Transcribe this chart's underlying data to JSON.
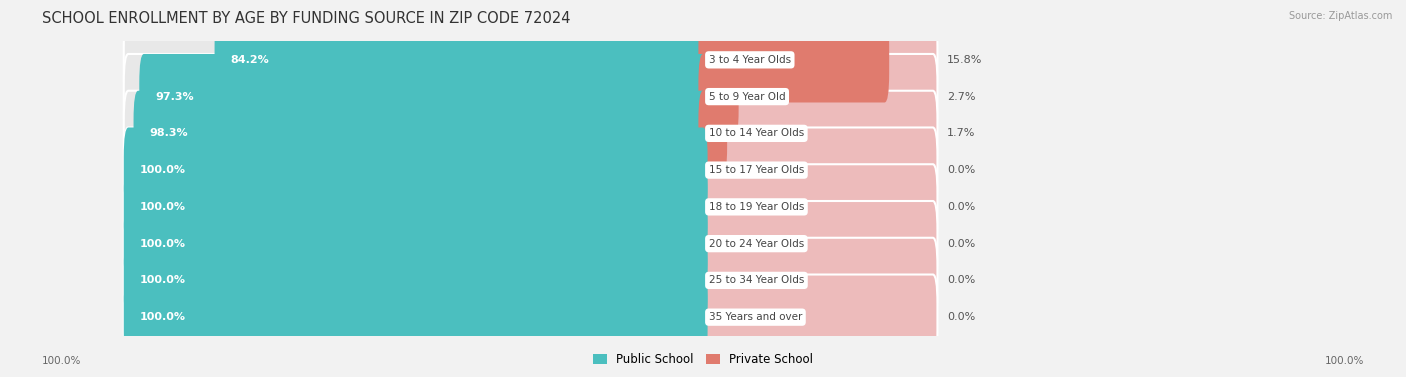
{
  "title": "SCHOOL ENROLLMENT BY AGE BY FUNDING SOURCE IN ZIP CODE 72024",
  "source": "Source: ZipAtlas.com",
  "categories": [
    "3 to 4 Year Olds",
    "5 to 9 Year Old",
    "10 to 14 Year Olds",
    "15 to 17 Year Olds",
    "18 to 19 Year Olds",
    "20 to 24 Year Olds",
    "25 to 34 Year Olds",
    "35 Years and over"
  ],
  "public_values": [
    84.2,
    97.3,
    98.3,
    100.0,
    100.0,
    100.0,
    100.0,
    100.0
  ],
  "private_values": [
    15.8,
    2.7,
    1.7,
    0.0,
    0.0,
    0.0,
    0.0,
    0.0
  ],
  "public_color": "#4BBFBF",
  "private_color": "#E07B6E",
  "private_bg_color": "#EDBBBB",
  "row_bg_color": "#E8E8E8",
  "background_color": "#F2F2F2",
  "legend_public": "Public School",
  "legend_private": "Private School",
  "x_left_label": "100.0%",
  "x_right_label": "100.0%",
  "title_fontsize": 10.5,
  "label_fontsize": 8.0,
  "cat_fontsize": 7.5
}
